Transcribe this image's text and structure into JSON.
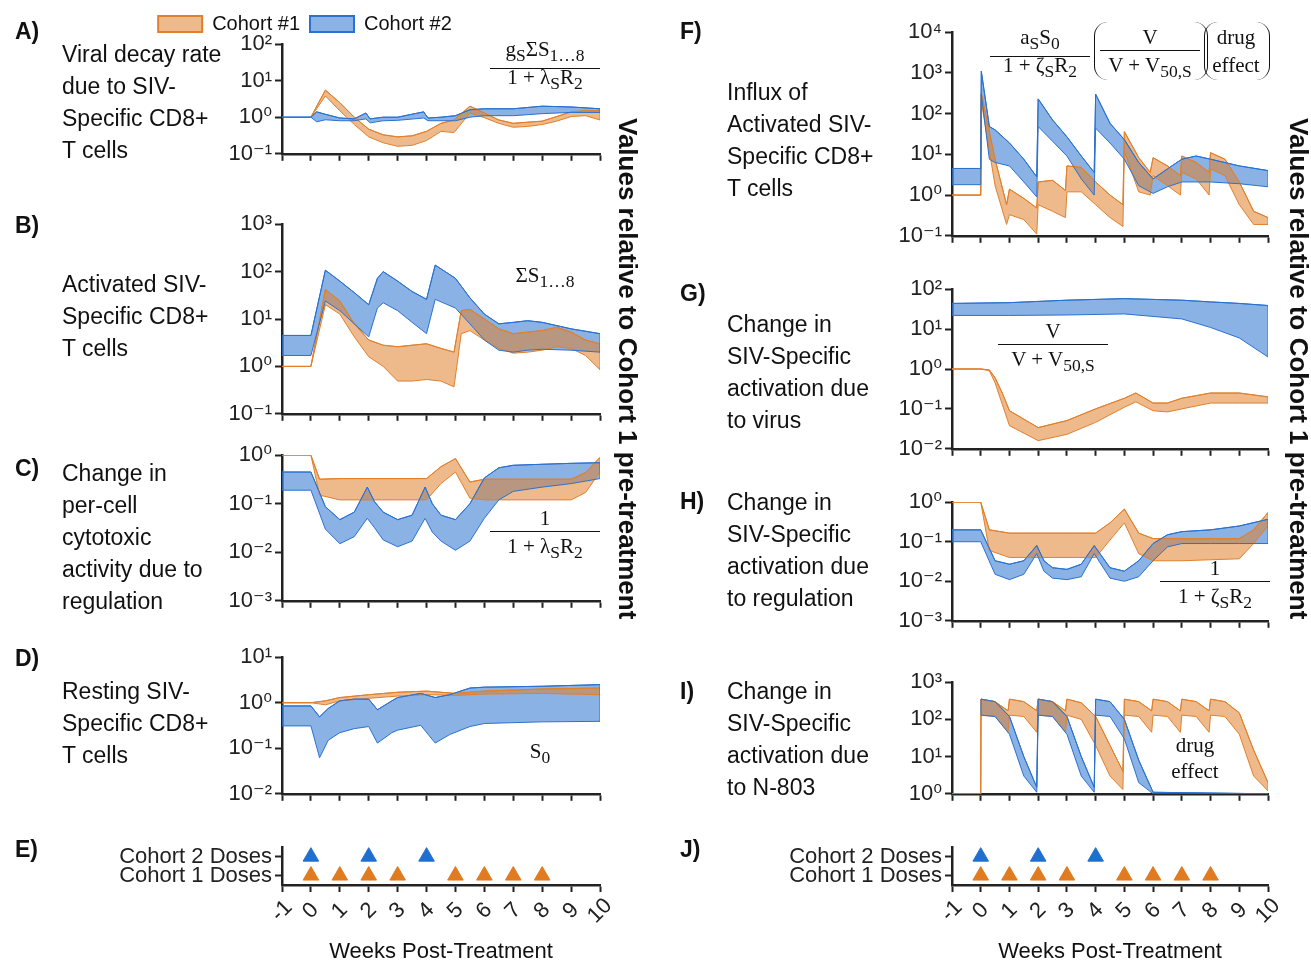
{
  "chart_data": [
    {
      "type": "line",
      "ylabel": "Viral decay rate due to SIV-Specific CD8+ T cells",
      "xlim": [
        -1,
        10
      ],
      "xticks": [
        -1,
        0,
        1,
        2,
        3,
        4,
        5,
        6,
        7,
        8,
        9,
        10
      ],
      "tick_labels": "y",
      "log": true,
      "ylim": [
        0.1,
        100
      ],
      "yticks": [
        {
          "value": 0.1,
          "label": "10⁻¹"
        },
        {
          "value": 1,
          "label": "10⁰"
        },
        {
          "value": 10,
          "label": "10¹"
        },
        {
          "value": 100,
          "label": "10²"
        }
      ],
      "legend": "top",
      "annotations": [
        "A)",
        "g$_{S}$ΣS$_{1…8}$",
        "1 + λ$_{S}$R$_{2}$",
        "Values relative to Cohort 1 pre-treatment"
      ],
      "series": [
        {
          "name": "Cohort #1",
          "color": "#e0802c",
          "x": [
            0,
            0.5,
            1,
            1.5,
            2,
            2.5,
            3,
            3.5,
            4,
            4.5,
            4.95,
            5.5,
            6,
            6.5,
            7,
            7.5,
            8,
            8.5,
            9,
            9.5,
            10
          ],
          "values": [
            1,
            5.5,
            2.5,
            1.0,
            0.47,
            0.33,
            0.29,
            0.31,
            0.41,
            0.68,
            0.84,
            2.0,
            1.3,
            0.84,
            0.68,
            0.73,
            0.78,
            1.04,
            1.4,
            1.5,
            1.5
          ],
          "upper": [
            1,
            5.5,
            2.5,
            1.0,
            0.47,
            0.33,
            0.29,
            0.31,
            0.41,
            0.68,
            0.84,
            2.0,
            1.3,
            0.84,
            0.68,
            0.73,
            0.78,
            1.04,
            1.4,
            1.5,
            1.5
          ],
          "lower": [
            1,
            3.8,
            1.5,
            0.63,
            0.29,
            0.2,
            0.16,
            0.17,
            0.23,
            0.41,
            0.38,
            1.3,
            0.97,
            0.68,
            0.53,
            0.56,
            0.63,
            0.78,
            1.04,
            1.1,
            0.84
          ]
        },
        {
          "name": "Cohort #2",
          "color": "#2a72d0",
          "x": [
            -1,
            0,
            0.2,
            0.5,
            1,
            1.5,
            1.9,
            2.05,
            2.5,
            3,
            3.9,
            4.05,
            4.5,
            5,
            5.5,
            6,
            7,
            8,
            9,
            10
          ],
          "values": [
            1,
            1,
            1.4,
            1.2,
            0.95,
            0.9,
            1.3,
            0.9,
            1.0,
            1.0,
            1.4,
            0.95,
            1.0,
            1.1,
            1.6,
            1.7,
            1.7,
            2.0,
            1.9,
            1.7
          ],
          "upper": [
            1,
            1,
            1.4,
            1.2,
            0.95,
            0.9,
            1.3,
            0.9,
            1.0,
            1.0,
            1.4,
            0.95,
            1.0,
            1.1,
            1.6,
            1.7,
            1.7,
            2.0,
            1.9,
            1.7
          ],
          "lower": [
            1,
            1,
            0.75,
            0.85,
            0.8,
            0.8,
            0.9,
            0.7,
            0.8,
            0.82,
            0.95,
            0.8,
            0.8,
            0.8,
            1.0,
            1.1,
            1.1,
            1.25,
            1.35,
            1.35
          ]
        }
      ]
    },
    {
      "type": "line",
      "ylabel": "Activated SIV-Specific CD8+ T cells",
      "xlim": [
        -1,
        10
      ],
      "xticks": [
        -1,
        0,
        1,
        2,
        3,
        4,
        5,
        6,
        7,
        8,
        9,
        10
      ],
      "tick_labels": "y",
      "log": true,
      "ylim": [
        0.1,
        1000
      ],
      "yticks": [
        {
          "value": 0.1,
          "label": "10⁻¹"
        },
        {
          "value": 1,
          "label": "10⁰"
        },
        {
          "value": 10,
          "label": "10¹"
        },
        {
          "value": 100,
          "label": "10²"
        },
        {
          "value": 1000,
          "label": "10³"
        }
      ],
      "annotations": [
        "B)",
        "ΣS$_{1…8}$"
      ],
      "series": [
        {
          "color": "#e0802c",
          "x": [
            -1,
            0,
            0.5,
            1,
            1.5,
            2,
            2.5,
            3,
            3.5,
            4,
            4.5,
            4.95,
            5.2,
            5.5,
            6,
            6.5,
            7,
            7.5,
            8,
            8.5,
            9,
            9.5,
            10
          ],
          "values": [
            1,
            1,
            42,
            24,
            7.9,
            3.6,
            2.8,
            2.6,
            2.8,
            3.0,
            2.4,
            2.0,
            15,
            16,
            10,
            6.2,
            4.9,
            5.3,
            5.7,
            6.7,
            5.3,
            3.6,
            3.0
          ],
          "upper": [
            1,
            1,
            42,
            24,
            7.9,
            3.6,
            2.8,
            2.6,
            2.8,
            3.0,
            2.4,
            2.0,
            15,
            16,
            10,
            6.2,
            4.9,
            5.3,
            5.7,
            6.7,
            5.3,
            3.6,
            3.0
          ],
          "lower": [
            1,
            1,
            20,
            12.7,
            4.2,
            1.6,
            1.0,
            0.49,
            0.49,
            0.53,
            0.49,
            0.37,
            4.9,
            5.7,
            3.6,
            2.4,
            1.9,
            2.0,
            2.2,
            2.6,
            2.4,
            1.7,
            0.85
          ]
        },
        {
          "color": "#2a72d0",
          "x": [
            -1,
            0,
            0.5,
            1,
            1.5,
            2,
            2.3,
            2.5,
            3,
            3.5,
            4,
            4.3,
            5,
            5.5,
            6,
            6.5,
            7,
            7.5,
            8,
            9,
            10
          ],
          "values": [
            4.5,
            4.5,
            107,
            63,
            36,
            20,
            72,
            100,
            63,
            38,
            26,
            137,
            72,
            28,
            12.7,
            7.9,
            8.5,
            9.2,
            8.5,
            6.2,
            4.9
          ],
          "upper": [
            4.5,
            4.5,
            107,
            63,
            36,
            20,
            72,
            100,
            63,
            38,
            26,
            137,
            72,
            28,
            12.7,
            7.9,
            8.5,
            9.2,
            8.5,
            6.2,
            4.9
          ],
          "lower": [
            1.7,
            1.7,
            24,
            15,
            7.9,
            4.2,
            17,
            22,
            15,
            8.5,
            4.9,
            26,
            17,
            7.9,
            3.6,
            2.2,
            2.0,
            2.2,
            2.3,
            2.2,
            2.0
          ]
        }
      ]
    },
    {
      "type": "line",
      "ylabel": "Change in per-cell cytotoxic activity due to regulation",
      "xlim": [
        -1,
        10
      ],
      "xticks": [
        -1,
        0,
        1,
        2,
        3,
        4,
        5,
        6,
        7,
        8,
        9,
        10
      ],
      "tick_labels": "y",
      "log": true,
      "ylim": [
        0.001,
        1
      ],
      "yticks": [
        {
          "value": 0.001,
          "label": "10⁻³"
        },
        {
          "value": 0.01,
          "label": "10⁻²"
        },
        {
          "value": 0.1,
          "label": "10⁻¹"
        },
        {
          "value": 1,
          "label": "10⁰"
        }
      ],
      "annotations": [
        "C)",
        "1",
        "1 + λ$_{S}$R$_{2}$"
      ],
      "series": [
        {
          "color": "#e0802c",
          "x": [
            -1,
            0,
            0.3,
            1,
            2,
            3,
            4,
            4.5,
            5,
            5.5,
            6,
            7,
            8,
            9,
            9.5,
            10
          ],
          "values": [
            1,
            1,
            0.32,
            0.33,
            0.33,
            0.33,
            0.33,
            0.58,
            0.85,
            0.28,
            0.32,
            0.32,
            0.32,
            0.32,
            0.44,
            0.9
          ],
          "upper": [
            1,
            1,
            0.32,
            0.33,
            0.33,
            0.33,
            0.33,
            0.58,
            0.85,
            0.28,
            0.32,
            0.32,
            0.32,
            0.32,
            0.44,
            0.9
          ],
          "lower": [
            1,
            1,
            0.15,
            0.12,
            0.12,
            0.12,
            0.12,
            0.26,
            0.45,
            0.13,
            0.12,
            0.12,
            0.12,
            0.12,
            0.17,
            0.45
          ]
        },
        {
          "color": "#2a72d0",
          "x": [
            -1,
            0,
            0.5,
            1,
            1.5,
            1.95,
            2.2,
            2.5,
            3,
            3.5,
            3.95,
            4.2,
            4.5,
            5,
            5.5,
            6,
            6.5,
            7,
            8,
            9,
            10
          ],
          "values": [
            0.45,
            0.45,
            0.087,
            0.047,
            0.067,
            0.22,
            0.11,
            0.067,
            0.047,
            0.058,
            0.22,
            0.1,
            0.058,
            0.047,
            0.1,
            0.34,
            0.55,
            0.62,
            0.65,
            0.68,
            0.7
          ],
          "upper": [
            0.45,
            0.45,
            0.087,
            0.047,
            0.067,
            0.22,
            0.11,
            0.067,
            0.047,
            0.058,
            0.22,
            0.1,
            0.058,
            0.047,
            0.1,
            0.34,
            0.55,
            0.62,
            0.65,
            0.68,
            0.7
          ],
          "lower": [
            0.19,
            0.19,
            0.03,
            0.015,
            0.021,
            0.05,
            0.032,
            0.018,
            0.013,
            0.017,
            0.05,
            0.026,
            0.017,
            0.011,
            0.017,
            0.05,
            0.12,
            0.18,
            0.22,
            0.26,
            0.33
          ]
        }
      ]
    },
    {
      "type": "line",
      "ylabel": "Resting SIV-Specific CD8+ T cells",
      "xlim": [
        -1,
        10
      ],
      "xticks": [
        -1,
        0,
        1,
        2,
        3,
        4,
        5,
        6,
        7,
        8,
        9,
        10
      ],
      "tick_labels": "y",
      "log": true,
      "ylim": [
        0.01,
        10
      ],
      "yticks": [
        {
          "value": 0.01,
          "label": "10⁻²"
        },
        {
          "value": 0.1,
          "label": "10⁻¹"
        },
        {
          "value": 1,
          "label": "10⁰"
        },
        {
          "value": 10,
          "label": "10¹"
        }
      ],
      "annotations": [
        "D)",
        "S$_{0}$"
      ],
      "series": [
        {
          "color": "#e0802c",
          "x": [
            -1,
            0,
            0.5,
            1,
            2,
            3,
            4,
            5,
            6,
            8,
            10
          ],
          "values": [
            1,
            1,
            1.1,
            1.3,
            1.5,
            1.7,
            1.8,
            1.6,
            1.8,
            2.0,
            2.1
          ],
          "upper": [
            1,
            1,
            1.1,
            1.3,
            1.5,
            1.7,
            1.8,
            1.6,
            1.8,
            2.0,
            2.1
          ],
          "lower": [
            1,
            1,
            0.9,
            1.1,
            1.25,
            1.4,
            1.5,
            1.45,
            1.55,
            1.6,
            1.5
          ]
        },
        {
          "color": "#2a72d0",
          "x": [
            -1,
            0,
            0.3,
            0.6,
            1,
            1.5,
            2,
            2.3,
            2.8,
            3,
            3.8,
            4.3,
            4.8,
            5.5,
            6,
            8,
            10
          ],
          "values": [
            0.85,
            0.85,
            0.49,
            0.75,
            1.1,
            1.2,
            1.2,
            0.7,
            1.1,
            1.3,
            1.6,
            1.3,
            1.5,
            2.1,
            2.2,
            2.3,
            2.5
          ],
          "upper": [
            0.85,
            0.85,
            0.49,
            0.75,
            1.1,
            1.2,
            1.2,
            0.7,
            1.1,
            1.3,
            1.6,
            1.3,
            1.5,
            2.1,
            2.2,
            2.3,
            2.5
          ],
          "lower": [
            0.31,
            0.31,
            0.062,
            0.15,
            0.22,
            0.27,
            0.3,
            0.13,
            0.22,
            0.25,
            0.32,
            0.13,
            0.2,
            0.3,
            0.35,
            0.38,
            0.39
          ]
        }
      ]
    },
    {
      "type": "scatter",
      "annotations": [
        "E)"
      ],
      "xlabel": "Weeks Post-Treatment",
      "orientation": "horizontal",
      "xlim": [
        -1,
        10
      ],
      "xticks": [
        -1,
        0,
        1,
        2,
        3,
        4,
        5,
        6,
        7,
        8,
        9,
        10
      ],
      "categories": [
        "Cohort 2 Doses",
        "Cohort 1 Doses"
      ],
      "marker": "triangle",
      "series": [
        {
          "colors": [
            "#1f6fd0",
            "#e07b20"
          ],
          "values": [
            0,
            0
          ]
        },
        {
          "colors": [
            "#1f6fd0",
            "#e07b20"
          ],
          "values": [
            2,
            1
          ]
        },
        {
          "colors": [
            "#1f6fd0",
            "#e07b20"
          ],
          "values": [
            4,
            2
          ]
        },
        {
          "colors": [
            "#1f6fd0",
            "#e07b20"
          ],
          "values": [
            null,
            3
          ]
        },
        {
          "colors": [
            "#1f6fd0",
            "#e07b20"
          ],
          "values": [
            null,
            5
          ]
        },
        {
          "colors": [
            "#1f6fd0",
            "#e07b20"
          ],
          "values": [
            null,
            6
          ]
        },
        {
          "colors": [
            "#1f6fd0",
            "#e07b20"
          ],
          "values": [
            null,
            7
          ]
        },
        {
          "colors": [
            "#1f6fd0",
            "#e07b20"
          ],
          "values": [
            null,
            8
          ]
        }
      ]
    },
    {
      "type": "line",
      "ylabel": "Influx of Activated SIV-Specific CD8+ T cells",
      "xlim": [
        -1,
        10
      ],
      "xticks": [
        -1,
        0,
        1,
        2,
        3,
        4,
        5,
        6,
        7,
        8,
        9,
        10
      ],
      "tick_labels": "y",
      "log": true,
      "ylim": [
        0.1,
        10000
      ],
      "yticks": [
        {
          "value": 0.1,
          "label": "10⁻¹"
        },
        {
          "value": 1,
          "label": "10⁰"
        },
        {
          "value": 10,
          "label": "10¹"
        },
        {
          "value": 100,
          "label": "10²"
        },
        {
          "value": 1000,
          "label": "10³"
        },
        {
          "value": 10000,
          "label": "10⁴"
        }
      ],
      "annotations": [
        "F)",
        "a$_{S}$S$_{0}$",
        "1 + ζ$_{S}$R$_{2}$",
        "V",
        "V + V$_{50,S}$",
        "drug",
        "effect",
        "Values relative to Cohort 1 pre-treatment"
      ],
      "series": [
        {
          "color": "#e0802c",
          "x": [
            -1,
            0,
            0.02,
            0.5,
            0.9,
            1.0,
            1.5,
            1.95,
            2.0,
            2.5,
            2.95,
            3.0,
            3.5,
            4,
            4.5,
            4.95,
            5.0,
            5.5,
            5.9,
            6.0,
            6.5,
            6.95,
            7.0,
            7.5,
            7.95,
            8.0,
            8.5,
            9,
            9.5,
            10
          ],
          "values": [
            1,
            1,
            320,
            7.6,
            0.58,
            1.4,
            0.83,
            0.48,
            2.1,
            2.3,
            1.3,
            5.2,
            4.8,
            2.1,
            1.0,
            0.58,
            36,
            8.3,
            3.6,
            8.3,
            5.2,
            3.0,
            9.1,
            6.3,
            3.6,
            11,
            7.6,
            2.1,
            0.4,
            0.28
          ],
          "upper": [
            1,
            1,
            320,
            7.6,
            0.58,
            1.4,
            0.83,
            0.48,
            2.1,
            2.3,
            1.3,
            5.2,
            4.8,
            2.1,
            1.0,
            0.58,
            36,
            8.3,
            3.6,
            8.3,
            5.2,
            3.0,
            9.1,
            6.3,
            3.6,
            11,
            7.6,
            2.1,
            0.4,
            0.28
          ],
          "lower": [
            1,
            1,
            200,
            1.7,
            0.19,
            0.33,
            0.25,
            0.11,
            0.58,
            0.4,
            0.28,
            1.2,
            1.2,
            0.58,
            0.28,
            0.17,
            12,
            1.2,
            1.0,
            3.0,
            1.7,
            1.0,
            3.6,
            2.5,
            1.0,
            4.4,
            3.0,
            0.58,
            0.19,
            0.19
          ]
        },
        {
          "color": "#2a72d0",
          "x": [
            -1,
            0,
            0.02,
            0.3,
            0.5,
            1,
            1.5,
            1.95,
            2.0,
            2.5,
            3,
            3.5,
            3.95,
            4.0,
            4.5,
            5,
            5.5,
            6,
            6.5,
            7,
            7.5,
            8,
            9,
            10
          ],
          "values": [
            4.5,
            4.5,
            1100,
            48,
            40,
            19,
            7.6,
            2.8,
            230,
            70,
            27,
            9.1,
            3.6,
            300,
            58,
            23,
            6.3,
            2.5,
            4.4,
            7.6,
            9.1,
            7.6,
            5.2,
            4.0
          ],
          "upper": [
            4.5,
            4.5,
            1100,
            48,
            40,
            19,
            7.6,
            2.8,
            230,
            70,
            27,
            9.1,
            3.6,
            300,
            58,
            23,
            6.3,
            2.5,
            4.4,
            7.6,
            9.1,
            7.6,
            5.2,
            4.0
          ],
          "lower": [
            1.8,
            1.8,
            300,
            7.6,
            6.3,
            5.2,
            2.1,
            0.9,
            48,
            21,
            9.1,
            2.5,
            1.0,
            44,
            19,
            7.6,
            1.7,
            1.1,
            1.6,
            2.1,
            2.1,
            2.1,
            1.9,
            1.6
          ]
        }
      ]
    },
    {
      "type": "line",
      "ylabel": "Change in SIV-Specific activation due to virus",
      "xlim": [
        -1,
        10
      ],
      "xticks": [
        -1,
        0,
        1,
        2,
        3,
        4,
        5,
        6,
        7,
        8,
        9,
        10
      ],
      "tick_labels": "y",
      "log": true,
      "ylim": [
        0.01,
        100
      ],
      "yticks": [
        {
          "value": 0.01,
          "label": "10⁻²"
        },
        {
          "value": 0.1,
          "label": "10⁻¹"
        },
        {
          "value": 1,
          "label": "10⁰"
        },
        {
          "value": 10,
          "label": "10¹"
        },
        {
          "value": 100,
          "label": "10²"
        }
      ],
      "annotations": [
        "G)",
        "V",
        "V + V$_{50,S}$"
      ],
      "series": [
        {
          "color": "#e0802c",
          "x": [
            -1,
            0,
            0.3,
            0.5,
            0.75,
            1,
            2,
            3,
            4,
            5,
            5.4,
            6,
            6.5,
            7,
            8,
            9,
            10
          ],
          "values": [
            1,
            1,
            0.95,
            0.6,
            0.25,
            0.09,
            0.034,
            0.051,
            0.1,
            0.185,
            0.25,
            0.14,
            0.14,
            0.185,
            0.25,
            0.25,
            0.2
          ],
          "upper": [
            1,
            1,
            0.95,
            0.6,
            0.25,
            0.09,
            0.034,
            0.051,
            0.1,
            0.185,
            0.25,
            0.14,
            0.14,
            0.185,
            0.25,
            0.25,
            0.2
          ],
          "lower": [
            1,
            1,
            0.9,
            0.45,
            0.13,
            0.038,
            0.016,
            0.023,
            0.046,
            0.11,
            0.15,
            0.09,
            0.084,
            0.1,
            0.14,
            0.14,
            0.14
          ]
        },
        {
          "color": "#2a72d0",
          "x": [
            -1,
            1,
            3,
            5,
            7,
            8,
            9,
            10
          ],
          "values": [
            44,
            46,
            53,
            58,
            53,
            48,
            44,
            39
          ],
          "upper": [
            44,
            46,
            53,
            58,
            53,
            48,
            44,
            39
          ],
          "lower": [
            22,
            22,
            22.6,
            24,
            18,
            11,
            6,
            2.0
          ]
        }
      ]
    },
    {
      "type": "line",
      "ylabel": "Change in SIV-Specific activation due to regulation",
      "xlim": [
        -1,
        10
      ],
      "xticks": [
        -1,
        0,
        1,
        2,
        3,
        4,
        5,
        6,
        7,
        8,
        9,
        10
      ],
      "tick_labels": "y",
      "log": true,
      "ylim": [
        0.001,
        1
      ],
      "yticks": [
        {
          "value": 0.001,
          "label": "10⁻³"
        },
        {
          "value": 0.01,
          "label": "10⁻²"
        },
        {
          "value": 0.1,
          "label": "10⁻¹"
        },
        {
          "value": 1,
          "label": "10⁰"
        }
      ],
      "annotations": [
        "H)",
        "1",
        "1 + ζ$_{S}$R$_{2}$"
      ],
      "series": [
        {
          "color": "#e0802c",
          "x": [
            -1,
            0,
            0.3,
            1,
            2,
            3,
            4,
            4.5,
            5,
            5.5,
            6,
            7,
            8,
            9,
            9.5,
            10
          ],
          "values": [
            1,
            1,
            0.2,
            0.165,
            0.165,
            0.165,
            0.165,
            0.3,
            0.67,
            0.165,
            0.12,
            0.12,
            0.12,
            0.12,
            0.2,
            0.55
          ],
          "upper": [
            1,
            1,
            0.2,
            0.165,
            0.165,
            0.165,
            0.165,
            0.3,
            0.67,
            0.165,
            0.12,
            0.12,
            0.12,
            0.12,
            0.2,
            0.55
          ],
          "lower": [
            1,
            1,
            0.06,
            0.04,
            0.04,
            0.04,
            0.04,
            0.11,
            0.3,
            0.05,
            0.033,
            0.033,
            0.035,
            0.037,
            0.09,
            0.25
          ]
        },
        {
          "color": "#2a72d0",
          "x": [
            -1,
            0,
            0.5,
            1,
            1.5,
            1.95,
            2.2,
            2.5,
            3,
            3.5,
            3.95,
            4.5,
            5,
            5.5,
            6,
            6.5,
            7,
            8,
            9,
            10
          ],
          "values": [
            0.2,
            0.2,
            0.033,
            0.027,
            0.033,
            0.08,
            0.033,
            0.022,
            0.02,
            0.027,
            0.08,
            0.022,
            0.018,
            0.033,
            0.09,
            0.15,
            0.18,
            0.2,
            0.25,
            0.37
          ],
          "upper": [
            0.2,
            0.2,
            0.033,
            0.027,
            0.033,
            0.08,
            0.033,
            0.022,
            0.02,
            0.027,
            0.08,
            0.022,
            0.018,
            0.033,
            0.09,
            0.15,
            0.18,
            0.2,
            0.25,
            0.37
          ],
          "lower": [
            0.1,
            0.1,
            0.015,
            0.011,
            0.015,
            0.05,
            0.018,
            0.012,
            0.011,
            0.013,
            0.05,
            0.012,
            0.01,
            0.013,
            0.033,
            0.074,
            0.09,
            0.09,
            0.09,
            0.09
          ]
        }
      ]
    },
    {
      "type": "line",
      "ylabel": "Change in SIV-Specific activation due to N-803",
      "xlim": [
        -1,
        10
      ],
      "xticks": [
        -1,
        0,
        1,
        2,
        3,
        4,
        5,
        6,
        7,
        8,
        9,
        10
      ],
      "tick_labels": "y",
      "log": true,
      "ylim": [
        1,
        1000
      ],
      "yticks": [
        {
          "value": 1,
          "label": "10⁰"
        },
        {
          "value": 10,
          "label": "10¹"
        },
        {
          "value": 100,
          "label": "10²"
        },
        {
          "value": 1000,
          "label": "10³"
        }
      ],
      "annotations": [
        "I)",
        "drug effect"
      ],
      "series": [
        {
          "color": "#e0802c",
          "x": [
            -1,
            0,
            0.01,
            0.5,
            0.95,
            1,
            1.5,
            1.95,
            2,
            2.5,
            2.95,
            3,
            3.5,
            4,
            4.5,
            4.95,
            5,
            5.5,
            5.95,
            6,
            6.5,
            6.95,
            7,
            7.5,
            7.95,
            8,
            8.5,
            9,
            9.5,
            10
          ],
          "values": [
            1,
            1,
            350,
            300,
            170,
            350,
            300,
            170,
            350,
            300,
            170,
            350,
            280,
            120,
            20,
            4,
            350,
            300,
            170,
            350,
            300,
            170,
            350,
            300,
            170,
            350,
            300,
            150,
            15,
            2
          ],
          "upper": [
            1,
            1,
            350,
            300,
            170,
            350,
            300,
            170,
            350,
            300,
            170,
            350,
            280,
            120,
            20,
            4,
            350,
            300,
            170,
            350,
            300,
            170,
            350,
            300,
            170,
            350,
            300,
            150,
            15,
            2
          ],
          "lower": [
            1,
            1,
            130,
            120,
            45,
            130,
            120,
            45,
            130,
            120,
            45,
            130,
            100,
            20,
            3,
            1.3,
            130,
            120,
            45,
            130,
            120,
            45,
            130,
            120,
            45,
            130,
            120,
            40,
            3,
            1.2
          ]
        },
        {
          "color": "#2a72d0",
          "x": [
            0.01,
            0.5,
            1,
            1.5,
            1.95,
            2,
            2.5,
            3,
            3.5,
            3.95,
            4,
            4.5,
            5,
            5.5,
            6,
            10
          ],
          "values": [
            350,
            300,
            120,
            10,
            1.5,
            350,
            300,
            120,
            10,
            1.5,
            350,
            300,
            100,
            8,
            1.1,
            1
          ],
          "upper": [
            350,
            300,
            120,
            10,
            1.5,
            350,
            300,
            120,
            10,
            1.5,
            350,
            300,
            100,
            8,
            1.1,
            1
          ],
          "lower": [
            130,
            120,
            40,
            3,
            1.1,
            130,
            120,
            40,
            3,
            1.1,
            130,
            120,
            30,
            2,
            1,
            1
          ]
        }
      ]
    },
    {
      "type": "scatter",
      "annotations": [
        "J)"
      ],
      "xlabel": "Weeks Post-Treatment",
      "orientation": "horizontal",
      "xlim": [
        -1,
        10
      ],
      "xticks": [
        -1,
        0,
        1,
        2,
        3,
        4,
        5,
        6,
        7,
        8,
        9,
        10
      ],
      "categories": [
        "Cohort 2 Doses",
        "Cohort 1 Doses"
      ],
      "marker": "triangle",
      "series": [
        {
          "colors": [
            "#1f6fd0",
            "#e07b20"
          ],
          "values": [
            0,
            0
          ]
        },
        {
          "colors": [
            "#1f6fd0",
            "#e07b20"
          ],
          "values": [
            2,
            1
          ]
        },
        {
          "colors": [
            "#1f6fd0",
            "#e07b20"
          ],
          "values": [
            4,
            2
          ]
        },
        {
          "colors": [
            "#1f6fd0",
            "#e07b20"
          ],
          "values": [
            null,
            3
          ]
        },
        {
          "colors": [
            "#1f6fd0",
            "#e07b20"
          ],
          "values": [
            null,
            5
          ]
        },
        {
          "colors": [
            "#1f6fd0",
            "#e07b20"
          ],
          "values": [
            null,
            6
          ]
        },
        {
          "colors": [
            "#1f6fd0",
            "#e07b20"
          ],
          "values": [
            null,
            7
          ]
        },
        {
          "colors": [
            "#1f6fd0",
            "#e07b20"
          ],
          "values": [
            null,
            8
          ]
        }
      ]
    }
  ]
}
